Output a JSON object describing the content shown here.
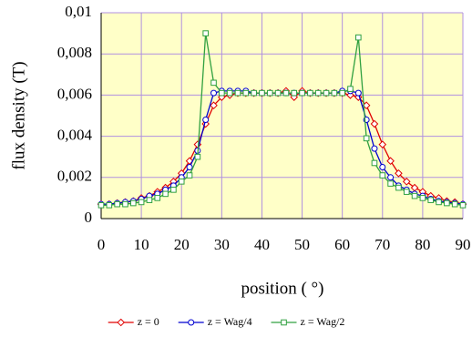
{
  "chart_data": {
    "type": "line",
    "xlabel": "position ( °)",
    "ylabel": "flux density (T)",
    "x": [
      0,
      2,
      4,
      6,
      8,
      10,
      12,
      14,
      16,
      18,
      20,
      22,
      24,
      26,
      28,
      30,
      32,
      34,
      36,
      38,
      40,
      42,
      44,
      46,
      48,
      50,
      52,
      54,
      56,
      58,
      60,
      62,
      64,
      66,
      68,
      70,
      72,
      74,
      76,
      78,
      80,
      82,
      84,
      86,
      88,
      90
    ],
    "series": [
      {
        "name": "z = 0",
        "color": "#e00000",
        "marker": "diamond",
        "values": [
          0.0007,
          0.0007,
          0.00075,
          0.0008,
          0.00085,
          0.001,
          0.0011,
          0.0013,
          0.0015,
          0.0018,
          0.0022,
          0.0028,
          0.0036,
          0.0046,
          0.0055,
          0.0059,
          0.006,
          0.0061,
          0.0061,
          0.0061,
          0.0061,
          0.0061,
          0.0061,
          0.0062,
          0.0059,
          0.0062,
          0.0061,
          0.0061,
          0.0061,
          0.0061,
          0.0061,
          0.006,
          0.0059,
          0.0055,
          0.0046,
          0.0036,
          0.0028,
          0.0022,
          0.0018,
          0.0015,
          0.0013,
          0.0011,
          0.001,
          0.00085,
          0.0008,
          0.0007
        ]
      },
      {
        "name": "z = Wag/4",
        "color": "#0000d0",
        "marker": "circle",
        "values": [
          0.0007,
          0.0007,
          0.00075,
          0.0008,
          0.00085,
          0.00095,
          0.0011,
          0.0012,
          0.0014,
          0.0016,
          0.002,
          0.0025,
          0.0033,
          0.0048,
          0.0061,
          0.0062,
          0.0062,
          0.0062,
          0.0062,
          0.0061,
          0.0061,
          0.0061,
          0.0061,
          0.0061,
          0.0061,
          0.0061,
          0.0061,
          0.0061,
          0.0061,
          0.0061,
          0.0062,
          0.0062,
          0.0061,
          0.0048,
          0.0034,
          0.0025,
          0.002,
          0.0016,
          0.0014,
          0.0012,
          0.0011,
          0.00095,
          0.00085,
          0.0008,
          0.00075,
          0.0007
        ]
      },
      {
        "name": "z = Wag/2",
        "color": "#30a040",
        "marker": "square",
        "values": [
          0.00065,
          0.00065,
          0.0007,
          0.0007,
          0.00075,
          0.0008,
          0.0009,
          0.001,
          0.0012,
          0.0014,
          0.0018,
          0.0021,
          0.003,
          0.009,
          0.0066,
          0.0061,
          0.0061,
          0.0061,
          0.0061,
          0.0061,
          0.0061,
          0.0061,
          0.0061,
          0.0061,
          0.0061,
          0.0061,
          0.0061,
          0.0061,
          0.0061,
          0.0061,
          0.0061,
          0.0063,
          0.0088,
          0.0039,
          0.0027,
          0.0021,
          0.0017,
          0.0015,
          0.0013,
          0.0011,
          0.001,
          0.0009,
          0.0008,
          0.00075,
          0.0007,
          0.00065
        ]
      }
    ],
    "xlim": [
      0,
      90
    ],
    "xticks": [
      0,
      10,
      20,
      30,
      40,
      50,
      60,
      70,
      80,
      90
    ],
    "ylim": [
      0,
      0.01
    ],
    "yticks": [
      0,
      {
        "value": 0.002,
        "label": "0,002"
      },
      {
        "value": 0.004,
        "label": "0,004"
      },
      {
        "value": 0.006,
        "label": "0,006"
      },
      {
        "value": 0.008,
        "label": "0,008"
      },
      {
        "value": 0.01,
        "label": "0,01"
      }
    ],
    "grid": true,
    "legend": "bottom"
  }
}
